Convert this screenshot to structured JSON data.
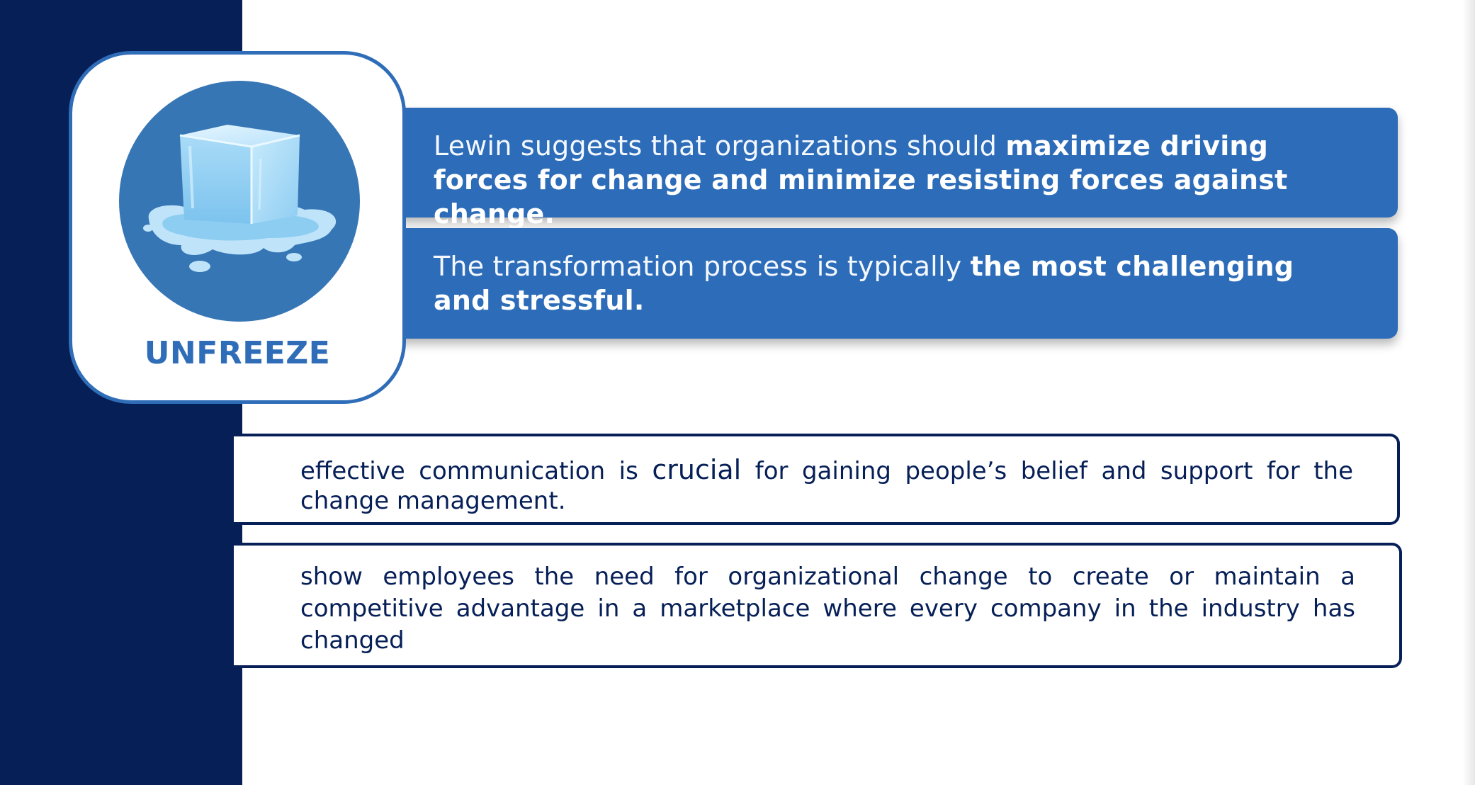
{
  "card": {
    "label": "UNFREEZE",
    "icon": "melting-ice-cube-icon"
  },
  "callouts": [
    {
      "text_normal": "Lewin suggests that organizations should ",
      "text_bold": "maximize driving forces for change and minimize resisting forces against change."
    },
    {
      "text_normal": "The transformation process is typically ",
      "text_bold": "the most challenging and stressful."
    }
  ],
  "info_boxes": [
    {
      "text_before": "effective communication is ",
      "text_emphasis": "crucial",
      "text_after": " for gaining people’s belief and support for the change management."
    },
    {
      "text": "show employees the need for organizational change to create or maintain a competitive advantage in a marketplace where every company in the industry has changed"
    }
  ],
  "colors": {
    "navy": "#061f57",
    "blue": "#2d6cb8",
    "circle_blue": "#3776b4",
    "white": "#ffffff"
  }
}
